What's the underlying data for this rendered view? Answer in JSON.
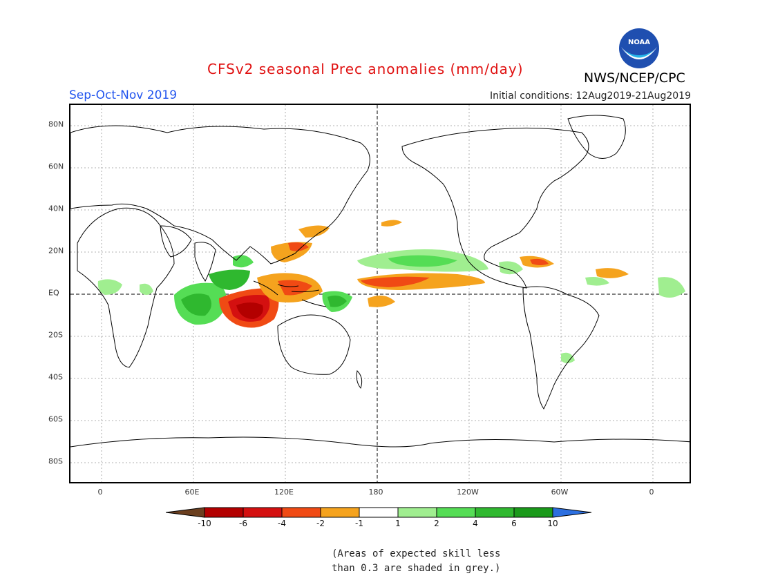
{
  "header": {
    "title": "CFSv2 seasonal Prec anomalies (mm/day)",
    "season": "Sep-Oct-Nov 2019",
    "initial_conditions": "Initial conditions: 12Aug2019-21Aug2019",
    "agency": "NWS/NCEP/CPC",
    "logo_text": "NOAA"
  },
  "map": {
    "lon_ticks": [
      "0",
      "60E",
      "120E",
      "180",
      "120W",
      "60W",
      "0"
    ],
    "lat_ticks": [
      "80N",
      "60N",
      "40N",
      "20N",
      "EQ",
      "20S",
      "40S",
      "60S",
      "80S"
    ]
  },
  "colorbar": {
    "labels": [
      "-10",
      "-6",
      "-4",
      "-2",
      "-1",
      "1",
      "2",
      "4",
      "6",
      "10"
    ],
    "colors": [
      "#6b3f1f",
      "#b30000",
      "#d41010",
      "#f04a14",
      "#f5a31e",
      "#ffffff",
      "#a0ee90",
      "#55dd55",
      "#2fb82f",
      "#1a9a1a",
      "#2c6fe0"
    ]
  },
  "note": {
    "line1": "(Areas of expected skill less",
    "line2": "than 0.3 are shaded in grey.)"
  }
}
